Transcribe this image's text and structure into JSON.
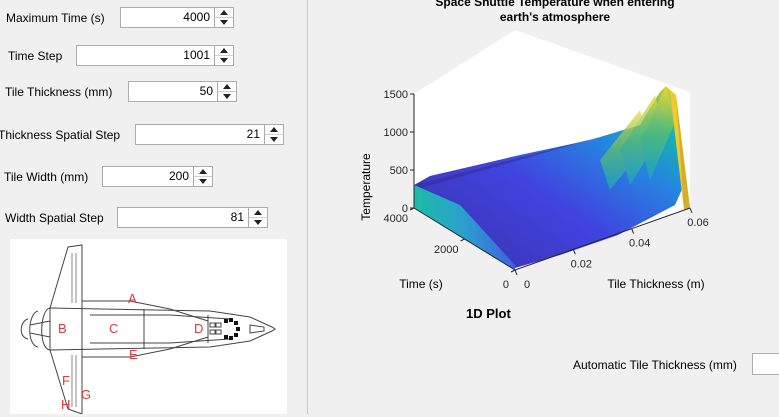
{
  "fields": [
    {
      "label": "Maximum Time (s)",
      "value": "4000"
    },
    {
      "label": "Time Step",
      "value": "1001"
    },
    {
      "label": "Tile Thickness (mm)",
      "value": "50"
    },
    {
      "label": "Thickness Spatial Step",
      "value": "21"
    },
    {
      "label": "Tile Width (mm)",
      "value": "200"
    },
    {
      "label": "Width Spatial Step",
      "value": "81"
    }
  ],
  "shuttle_diagram": {
    "region_labels": [
      "A",
      "B",
      "C",
      "D",
      "E",
      "F",
      "G",
      "H"
    ],
    "label_color": "#e0393e"
  },
  "plot": {
    "title_line1": "Space Shuttle Temperature when entering",
    "title_line2": "earth's atmosphere",
    "caption": "1D Plot"
  },
  "automatic": {
    "label": "Automatic Tile Thickness (mm)",
    "value": ""
  },
  "chart_data": {
    "type": "surface",
    "title": "Space Shuttle Temperature when entering earth's atmosphere",
    "xlabel": "Tile Thickness (m)",
    "ylabel": "Time (s)",
    "zlabel": "Temperature",
    "xlim": [
      0,
      0.06
    ],
    "ylim": [
      0,
      4000
    ],
    "zlim": [
      0,
      1500
    ],
    "x_ticks": [
      "0",
      "0.02",
      "0.04",
      "0.06"
    ],
    "y_ticks": [
      "0",
      "2000",
      "4000"
    ],
    "z_ticks": [
      "0",
      "500",
      "1000",
      "1500"
    ],
    "peak_value": 1500,
    "colormap": "parula",
    "grid": true
  }
}
